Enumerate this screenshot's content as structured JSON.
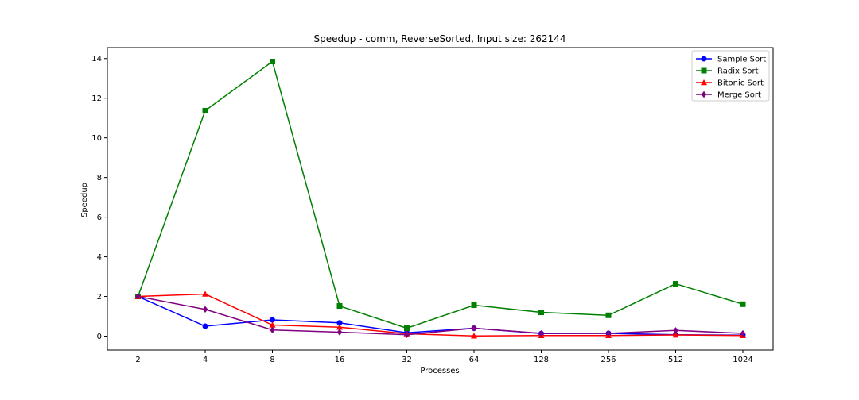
{
  "chart_data": {
    "type": "line",
    "title": "Speedup - comm, ReverseSorted, Input size: 262144",
    "xlabel": "Processes",
    "ylabel": "Speedup",
    "categories": [
      "2",
      "4",
      "8",
      "16",
      "32",
      "64",
      "128",
      "256",
      "512",
      "1024"
    ],
    "ylim": [
      -0.7,
      14.55
    ],
    "yticks": [
      "0",
      "2",
      "4",
      "6",
      "8",
      "10",
      "12",
      "14"
    ],
    "grid": false,
    "legend_position": "top-right",
    "series": [
      {
        "name": "Sample Sort",
        "color": "#0000ff",
        "marker": "circle",
        "values": [
          2.0,
          0.5,
          0.82,
          0.67,
          0.17,
          0.4,
          0.13,
          0.14,
          0.07,
          0.05
        ]
      },
      {
        "name": "Radix Sort",
        "color": "#008000",
        "marker": "square",
        "values": [
          2.0,
          11.37,
          13.85,
          1.52,
          0.4,
          1.56,
          1.2,
          1.05,
          2.64,
          1.61
        ]
      },
      {
        "name": "Bitonic Sort",
        "color": "#ff0000",
        "marker": "triangle",
        "values": [
          2.0,
          2.12,
          0.56,
          0.45,
          0.12,
          0.01,
          0.03,
          0.03,
          0.06,
          0.03
        ]
      },
      {
        "name": "Merge Sort",
        "color": "#800080",
        "marker": "diamond",
        "values": [
          2.0,
          1.35,
          0.31,
          0.2,
          0.07,
          0.4,
          0.14,
          0.14,
          0.29,
          0.14
        ]
      }
    ]
  }
}
